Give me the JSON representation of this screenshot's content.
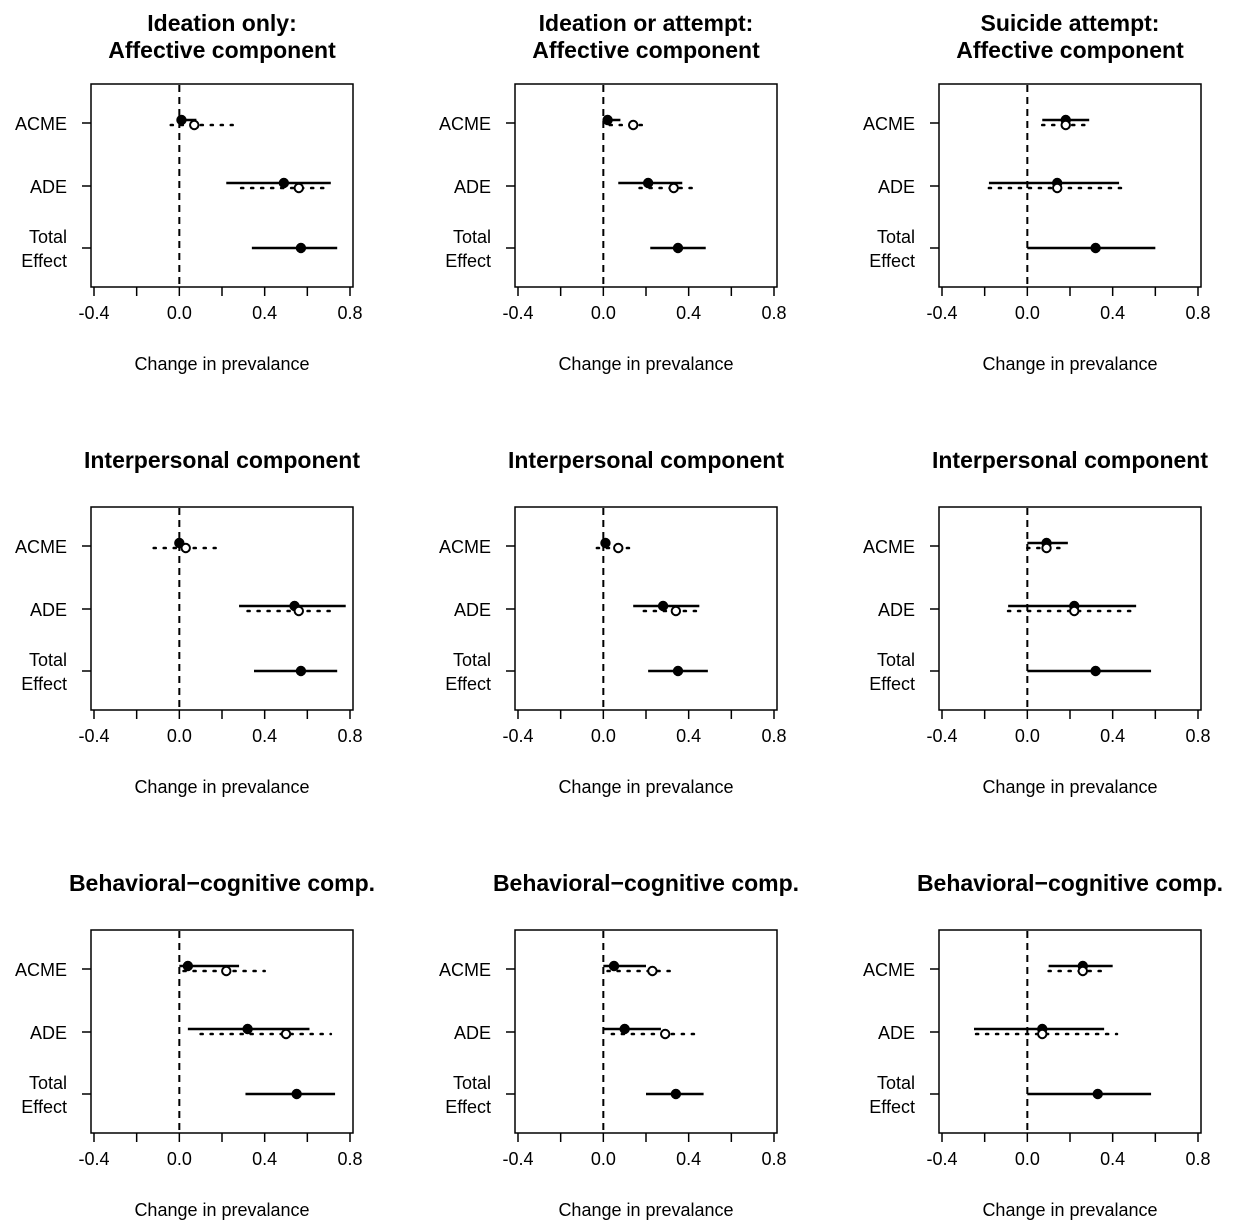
{
  "figure": {
    "row_labels": [
      "ACME",
      "ADE",
      "Total Effect"
    ],
    "total_label_lines": [
      "Total",
      "Effect"
    ],
    "xlabel": "Change in prevalance"
  },
  "chart_data": [
    {
      "type": "scatter",
      "title_lines": [
        "Ideation only:",
        "Affective component"
      ],
      "xlabel": "Change in prevalance",
      "xlim": [
        -0.4,
        0.8
      ],
      "xticks": [
        -0.4,
        0.0,
        0.4,
        0.8
      ],
      "reference_line_x": 0,
      "categories": [
        "ACME",
        "ADE",
        "Total Effect"
      ],
      "series": [
        {
          "marker": "filled",
          "line": "solid",
          "estimates": [
            0.01,
            0.49,
            0.57
          ],
          "lower": [
            0.0,
            0.22,
            0.34
          ],
          "upper": [
            0.08,
            0.71,
            0.74
          ]
        },
        {
          "marker": "open",
          "line": "dotted",
          "estimates": [
            0.07,
            0.56
          ],
          "lower": [
            -0.04,
            0.29
          ],
          "upper": [
            0.25,
            0.7
          ]
        }
      ]
    },
    {
      "type": "scatter",
      "title_lines": [
        "Ideation or attempt:",
        "Affective component"
      ],
      "xlabel": "Change in prevalance",
      "xlim": [
        -0.4,
        0.8
      ],
      "xticks": [
        -0.4,
        0.0,
        0.4,
        0.8
      ],
      "reference_line_x": 0,
      "categories": [
        "ACME",
        "ADE",
        "Total Effect"
      ],
      "series": [
        {
          "marker": "filled",
          "line": "solid",
          "estimates": [
            0.02,
            0.21,
            0.35
          ],
          "lower": [
            0.0,
            0.07,
            0.22
          ],
          "upper": [
            0.08,
            0.37,
            0.48
          ]
        },
        {
          "marker": "open",
          "line": "dotted",
          "estimates": [
            0.14,
            0.33
          ],
          "lower": [
            0.03,
            0.17
          ],
          "upper": [
            0.2,
            0.45
          ]
        }
      ]
    },
    {
      "type": "scatter",
      "title_lines": [
        "Suicide attempt:",
        "Affective component"
      ],
      "xlabel": "Change in prevalance",
      "xlim": [
        -0.4,
        0.8
      ],
      "xticks": [
        -0.4,
        0.0,
        0.4,
        0.8
      ],
      "reference_line_x": 0,
      "categories": [
        "ACME",
        "ADE",
        "Total Effect"
      ],
      "series": [
        {
          "marker": "filled",
          "line": "solid",
          "estimates": [
            0.18,
            0.14,
            0.32
          ],
          "lower": [
            0.07,
            -0.18,
            0.0
          ],
          "upper": [
            0.29,
            0.43,
            0.6
          ]
        },
        {
          "marker": "open",
          "line": "dotted",
          "estimates": [
            0.18,
            0.14
          ],
          "lower": [
            0.07,
            -0.18
          ],
          "upper": [
            0.3,
            0.44
          ]
        }
      ]
    },
    {
      "type": "scatter",
      "title_lines": [
        "Interpersonal component"
      ],
      "xlabel": "Change in prevalance",
      "xlim": [
        -0.4,
        0.8
      ],
      "xticks": [
        -0.4,
        0.0,
        0.4,
        0.8
      ],
      "reference_line_x": 0,
      "categories": [
        "ACME",
        "ADE",
        "Total Effect"
      ],
      "series": [
        {
          "marker": "filled",
          "line": "solid",
          "estimates": [
            0.0,
            0.54,
            0.57
          ],
          "lower": [
            -0.01,
            0.28,
            0.35
          ],
          "upper": [
            0.02,
            0.78,
            0.74
          ]
        },
        {
          "marker": "open",
          "line": "dotted",
          "estimates": [
            0.03,
            0.56
          ],
          "lower": [
            -0.12,
            0.32
          ],
          "upper": [
            0.17,
            0.72
          ]
        }
      ]
    },
    {
      "type": "scatter",
      "title_lines": [
        "Interpersonal component"
      ],
      "xlabel": "Change in prevalance",
      "xlim": [
        -0.4,
        0.8
      ],
      "xticks": [
        -0.4,
        0.0,
        0.4,
        0.8
      ],
      "reference_line_x": 0,
      "categories": [
        "ACME",
        "ADE",
        "Total Effect"
      ],
      "series": [
        {
          "marker": "filled",
          "line": "solid",
          "estimates": [
            0.01,
            0.28,
            0.35
          ],
          "lower": [
            0.0,
            0.14,
            0.21
          ],
          "upper": [
            0.02,
            0.45,
            0.49
          ]
        },
        {
          "marker": "open",
          "line": "dotted",
          "estimates": [
            0.07,
            0.34
          ],
          "lower": [
            -0.03,
            0.19
          ],
          "upper": [
            0.14,
            0.47
          ]
        }
      ]
    },
    {
      "type": "scatter",
      "title_lines": [
        "Interpersonal component"
      ],
      "xlabel": "Change in prevalance",
      "xlim": [
        -0.4,
        0.8
      ],
      "xticks": [
        -0.4,
        0.0,
        0.4,
        0.8
      ],
      "reference_line_x": 0,
      "categories": [
        "ACME",
        "ADE",
        "Total Effect"
      ],
      "series": [
        {
          "marker": "filled",
          "line": "solid",
          "estimates": [
            0.09,
            0.22,
            0.32
          ],
          "lower": [
            0.0,
            -0.09,
            0.0
          ],
          "upper": [
            0.19,
            0.51,
            0.58
          ]
        },
        {
          "marker": "open",
          "line": "dotted",
          "estimates": [
            0.09,
            0.22
          ],
          "lower": [
            0.0,
            -0.09
          ],
          "upper": [
            0.18,
            0.51
          ]
        }
      ]
    },
    {
      "type": "scatter",
      "title_lines": [
        "Behavioral−cognitive comp."
      ],
      "xlabel": "Change in prevalance",
      "xlim": [
        -0.4,
        0.8
      ],
      "xticks": [
        -0.4,
        0.0,
        0.4,
        0.8
      ],
      "reference_line_x": 0,
      "categories": [
        "ACME",
        "ADE",
        "Total Effect"
      ],
      "series": [
        {
          "marker": "filled",
          "line": "solid",
          "estimates": [
            0.04,
            0.32,
            0.55
          ],
          "lower": [
            0.0,
            0.04,
            0.31
          ],
          "upper": [
            0.28,
            0.61,
            0.73
          ]
        },
        {
          "marker": "open",
          "line": "dotted",
          "estimates": [
            0.22,
            0.5
          ],
          "lower": [
            0.02,
            0.1
          ],
          "upper": [
            0.4,
            0.71
          ]
        }
      ]
    },
    {
      "type": "scatter",
      "title_lines": [
        "Behavioral−cognitive comp."
      ],
      "xlabel": "Change in prevalance",
      "xlim": [
        -0.4,
        0.8
      ],
      "xticks": [
        -0.4,
        0.0,
        0.4,
        0.8
      ],
      "reference_line_x": 0,
      "categories": [
        "ACME",
        "ADE",
        "Total Effect"
      ],
      "series": [
        {
          "marker": "filled",
          "line": "solid",
          "estimates": [
            0.05,
            0.1,
            0.34
          ],
          "lower": [
            0.0,
            0.0,
            0.2
          ],
          "upper": [
            0.2,
            0.27,
            0.47
          ]
        },
        {
          "marker": "open",
          "line": "dotted",
          "estimates": [
            0.23,
            0.29
          ],
          "lower": [
            0.02,
            0.04
          ],
          "upper": [
            0.33,
            0.43
          ]
        }
      ]
    },
    {
      "type": "scatter",
      "title_lines": [
        "Behavioral−cognitive comp."
      ],
      "xlabel": "Change in prevalance",
      "xlim": [
        -0.4,
        0.8
      ],
      "xticks": [
        -0.4,
        0.0,
        0.4,
        0.8
      ],
      "reference_line_x": 0,
      "categories": [
        "ACME",
        "ADE",
        "Total Effect"
      ],
      "series": [
        {
          "marker": "filled",
          "line": "solid",
          "estimates": [
            0.26,
            0.07,
            0.33
          ],
          "lower": [
            0.1,
            -0.25,
            0.0
          ],
          "upper": [
            0.4,
            0.36,
            0.58
          ]
        },
        {
          "marker": "open",
          "line": "dotted",
          "estimates": [
            0.26,
            0.07
          ],
          "lower": [
            0.1,
            -0.24
          ],
          "upper": [
            0.38,
            0.42
          ]
        }
      ]
    }
  ]
}
